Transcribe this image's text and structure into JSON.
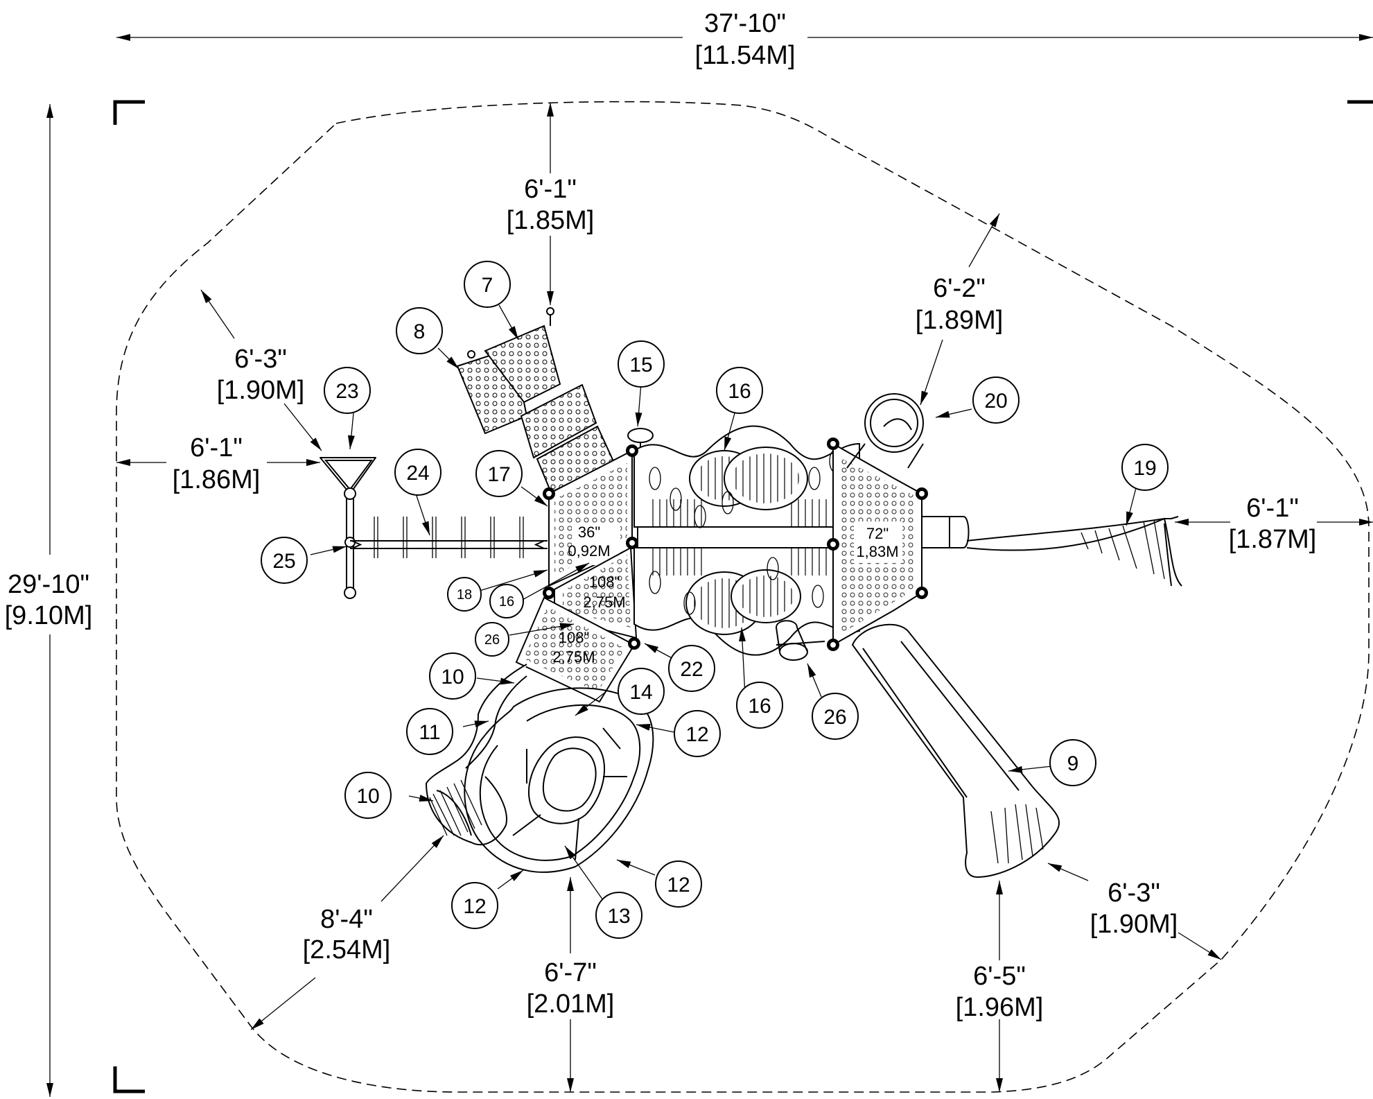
{
  "dimensions": {
    "overall_width": {
      "imperial": "37'-10\"",
      "metric": "[11.54M]"
    },
    "overall_height": {
      "imperial": "29'-10\"",
      "metric": "[9.10M]"
    },
    "clear_top": {
      "imperial": "6'-1\"",
      "metric": "[1.85M]"
    },
    "clear_upper_right": {
      "imperial": "6'-2\"",
      "metric": "[1.89M]"
    },
    "clear_upper_left": {
      "imperial": "6'-3\"",
      "metric": "[1.90M]"
    },
    "clear_left": {
      "imperial": "6'-1\"",
      "metric": "[1.86M]"
    },
    "clear_right": {
      "imperial": "6'-1\"",
      "metric": "[1.87M]"
    },
    "clear_lower_left": {
      "imperial": "8'-4\"",
      "metric": "[2.54M]"
    },
    "clear_bottom": {
      "imperial": "6'-7\"",
      "metric": "[2.01M]"
    },
    "clear_bottom_right": {
      "imperial": "6'-5\"",
      "metric": "[1.96M]"
    },
    "clear_lower_right": {
      "imperial": "6'-3\"",
      "metric": "[1.90M]"
    }
  },
  "decks": {
    "d36": {
      "imperial": "36\"",
      "metric": "0,92M"
    },
    "d72": {
      "imperial": "72\"",
      "metric": "1,83M"
    },
    "d108a": {
      "imperial": "108\"",
      "metric": "2,75M"
    },
    "d108b": {
      "imperial": "108\"",
      "metric": "2,75M"
    }
  },
  "callouts": {
    "c7": "7",
    "c8": "8",
    "c9": "9",
    "c10a": "10",
    "c10b": "10",
    "c11": "11",
    "c12a": "12",
    "c12b": "12",
    "c12c": "12",
    "c13": "13",
    "c14": "14",
    "c15": "15",
    "c16a": "16",
    "c16b": "16",
    "c16c": "16",
    "c17": "17",
    "c18": "18",
    "c19": "19",
    "c20": "20",
    "c22": "22",
    "c23": "23",
    "c24": "24",
    "c25": "25",
    "c26a": "26",
    "c26b": "26"
  }
}
